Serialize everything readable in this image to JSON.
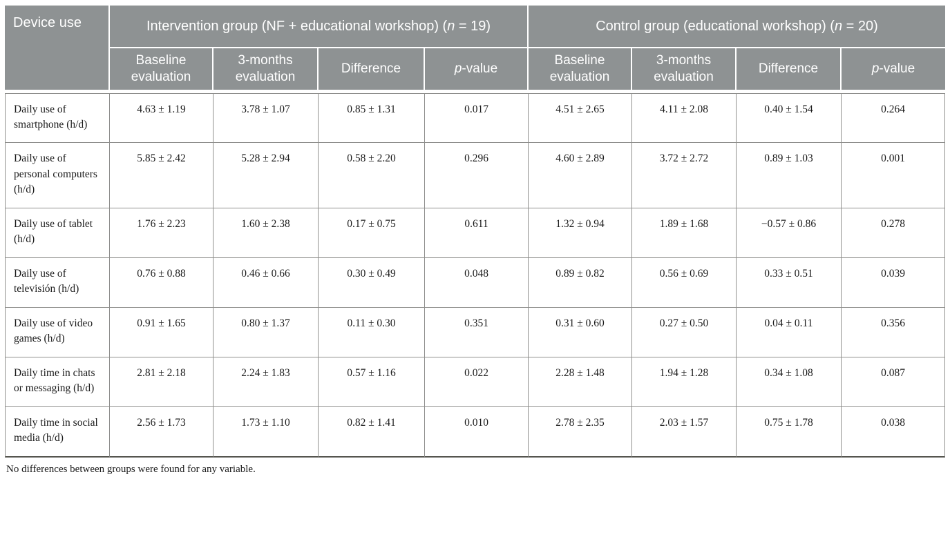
{
  "table": {
    "header": {
      "device_use": "Device use",
      "groups": [
        {
          "title": "Intervention group (NF + educational workshop) (",
          "n": "n",
          "n_rest": " = 19)"
        },
        {
          "title": "Control group (educational workshop) (",
          "n": "n",
          "n_rest": " = 20)"
        }
      ],
      "subcols": {
        "baseline": "Baseline evaluation",
        "months": "3-months evaluation",
        "difference": "Difference",
        "p": "p",
        "p_rest": "-value"
      }
    },
    "rows": [
      {
        "label": "Daily use of smartphone (h/d)",
        "cells": [
          "4.63 ± 1.19",
          "3.78 ± 1.07",
          "0.85 ± 1.31",
          "0.017",
          "4.51 ± 2.65",
          "4.11 ± 2.08",
          "0.40 ± 1.54",
          "0.264"
        ]
      },
      {
        "label": "Daily use of personal computers (h/d)",
        "cells": [
          "5.85 ± 2.42",
          "5.28 ± 2.94",
          "0.58 ± 2.20",
          "0.296",
          "4.60 ± 2.89",
          "3.72 ± 2.72",
          "0.89 ± 1.03",
          "0.001"
        ]
      },
      {
        "label": "Daily use of tablet (h/d)",
        "cells": [
          "1.76 ± 2.23",
          "1.60 ± 2.38",
          "0.17 ± 0.75",
          "0.611",
          "1.32 ± 0.94",
          "1.89 ± 1.68",
          "−0.57 ± 0.86",
          "0.278"
        ]
      },
      {
        "label": "Daily use of televisión (h/d)",
        "cells": [
          "0.76 ± 0.88",
          "0.46 ± 0.66",
          "0.30 ± 0.49",
          "0.048",
          "0.89 ± 0.82",
          "0.56 ± 0.69",
          "0.33 ± 0.51",
          "0.039"
        ]
      },
      {
        "label": "Daily use of video games (h/d)",
        "cells": [
          "0.91 ± 1.65",
          "0.80 ± 1.37",
          "0.11 ± 0.30",
          "0.351",
          "0.31 ± 0.60",
          "0.27 ± 0.50",
          "0.04 ± 0.11",
          "0.356"
        ]
      },
      {
        "label": "Daily time in chats or messaging (h/d)",
        "cells": [
          "2.81 ± 2.18",
          "2.24 ± 1.83",
          "0.57 ± 1.16",
          "0.022",
          "2.28 ± 1.48",
          "1.94 ± 1.28",
          "0.34 ± 1.08",
          "0.087"
        ]
      },
      {
        "label": "Daily time in social media (h/d)",
        "cells": [
          "2.56 ± 1.73",
          "1.73 ± 1.10",
          "0.82 ± 1.41",
          "0.010",
          "2.78 ± 2.35",
          "2.03 ± 1.57",
          "0.75 ± 1.78",
          "0.038"
        ]
      }
    ],
    "footnote": "No differences between groups were found for any variable."
  },
  "colors": {
    "header_background": "#8e9293",
    "header_text": "#ffffff",
    "body_border": "#8e8e8c",
    "bottom_rule": "#55554f"
  }
}
